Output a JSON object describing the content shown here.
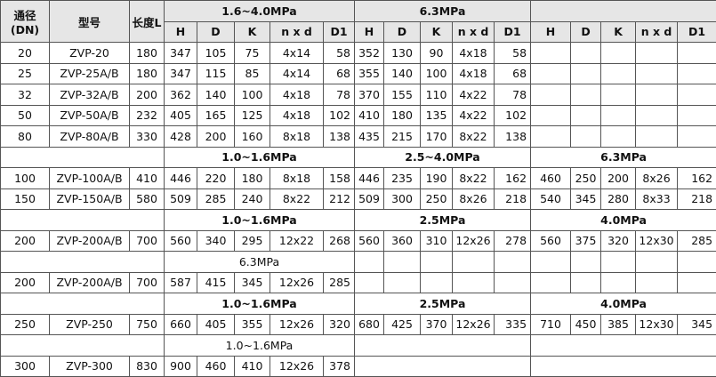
{
  "header": {
    "dn_line1": "通径",
    "dn_line2": "(DN)",
    "model": "型号",
    "length": "长度L",
    "groups": [
      "1.6~4.0MPa",
      "6.3MPa",
      ""
    ],
    "sub_columns": [
      "H",
      "D",
      "K",
      "n x d",
      "D1"
    ]
  },
  "rows": [
    {
      "type": "data",
      "cells": [
        "20",
        "ZVP-20",
        "180",
        "347",
        "105",
        "75",
        "4x14",
        "58",
        "352",
        "130",
        "90",
        "4x18",
        "58",
        "",
        "",
        "",
        "",
        ""
      ]
    },
    {
      "type": "data",
      "cells": [
        "25",
        "ZVP-25A/B",
        "180",
        "347",
        "115",
        "85",
        "4x14",
        "68",
        "355",
        "140",
        "100",
        "4x18",
        "68",
        "",
        "",
        "",
        "",
        ""
      ]
    },
    {
      "type": "data",
      "cells": [
        "32",
        "ZVP-32A/B",
        "200",
        "362",
        "140",
        "100",
        "4x18",
        "78",
        "370",
        "155",
        "110",
        "4x22",
        "78",
        "",
        "",
        "",
        "",
        ""
      ]
    },
    {
      "type": "data",
      "cells": [
        "50",
        "ZVP-50A/B",
        "232",
        "405",
        "165",
        "125",
        "4x18",
        "102",
        "410",
        "180",
        "135",
        "4x22",
        "102",
        "",
        "",
        "",
        "",
        ""
      ]
    },
    {
      "type": "data",
      "cells": [
        "80",
        "ZVP-80A/B",
        "330",
        "428",
        "200",
        "160",
        "8x18",
        "138",
        "435",
        "215",
        "170",
        "8x22",
        "138",
        "",
        "",
        "",
        "",
        ""
      ]
    },
    {
      "type": "group",
      "bold": true,
      "labels": [
        "1.0~1.6MPa",
        "2.5~4.0MPa",
        "6.3MPa"
      ]
    },
    {
      "type": "data",
      "cells": [
        "100",
        "ZVP-100A/B",
        "410",
        "446",
        "220",
        "180",
        "8x18",
        "158",
        "446",
        "235",
        "190",
        "8x22",
        "162",
        "460",
        "250",
        "200",
        "8x26",
        "162"
      ]
    },
    {
      "type": "data",
      "cells": [
        "150",
        "ZVP-150A/B",
        "580",
        "509",
        "285",
        "240",
        "8x22",
        "212",
        "509",
        "300",
        "250",
        "8x26",
        "218",
        "540",
        "345",
        "280",
        "8x33",
        "218"
      ]
    },
    {
      "type": "group",
      "bold": true,
      "labels": [
        "1.0~1.6MPa",
        "2.5MPa",
        "4.0MPa"
      ]
    },
    {
      "type": "data",
      "cells": [
        "200",
        "ZVP-200A/B",
        "700",
        "560",
        "340",
        "295",
        "12x22",
        "268",
        "560",
        "360",
        "310",
        "12x26",
        "278",
        "560",
        "375",
        "320",
        "12x30",
        "285"
      ]
    },
    {
      "type": "group",
      "bold": false,
      "labels": [
        "6.3MPa",
        "",
        ""
      ]
    },
    {
      "type": "data",
      "cells": [
        "200",
        "ZVP-200A/B",
        "700",
        "587",
        "415",
        "345",
        "12x26",
        "285",
        "",
        "",
        "",
        "",
        "",
        "",
        "",
        "",
        "",
        ""
      ]
    },
    {
      "type": "group",
      "bold": true,
      "labels": [
        "1.0~1.6MPa",
        "2.5MPa",
        "4.0MPa"
      ]
    },
    {
      "type": "data",
      "cells": [
        "250",
        "ZVP-250",
        "750",
        "660",
        "405",
        "355",
        "12x26",
        "320",
        "680",
        "425",
        "370",
        "12x26",
        "335",
        "710",
        "450",
        "385",
        "12x30",
        "345"
      ]
    },
    {
      "type": "group",
      "bold": false,
      "labels": [
        "1.0~1.6MPa",
        null,
        null
      ]
    },
    {
      "type": "data",
      "cells": [
        "300",
        "ZVP-300",
        "830",
        "900",
        "460",
        "410",
        "12x26",
        "378"
      ]
    }
  ]
}
